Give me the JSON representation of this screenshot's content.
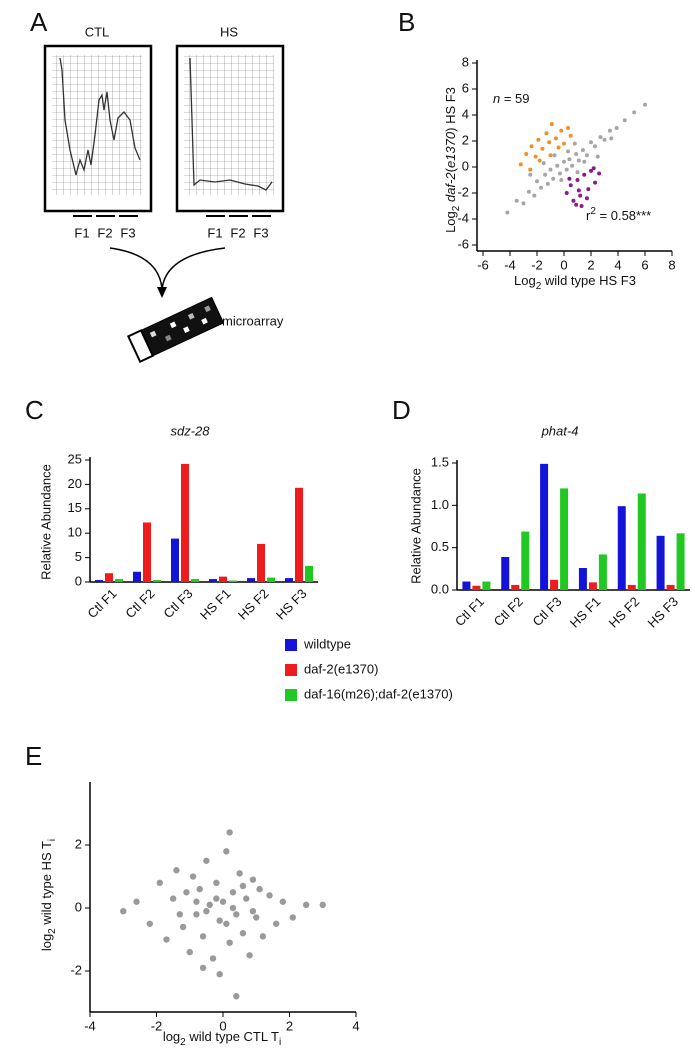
{
  "panel_labels": [
    "A",
    "B",
    "C",
    "D",
    "E"
  ],
  "panel_a": {
    "ctl_label": "CTL",
    "hs_label": "HS",
    "fractions": [
      "F1",
      "F2",
      "F3"
    ],
    "slide_label": "microarray"
  },
  "legend": {
    "corner": "shared-middle"
  },
  "chart_data": [
    {
      "type": "scatter",
      "y_label": [
        "Log",
        "2",
        " ",
        "daf-2",
        "(",
        "e1370",
        ")",
        " HS F3"
      ],
      "x_label": [
        "Log",
        "2",
        " wild type HS F3"
      ],
      "annotations": {
        "n": [
          "n",
          " = 59"
        ],
        "r2": [
          "r",
          "2",
          " = 0.58***"
        ]
      },
      "xlim": [
        -6,
        8
      ],
      "ylim": [
        -6,
        8
      ],
      "xticks": [
        -6,
        -4,
        -2,
        0,
        2,
        4,
        6,
        8
      ],
      "yticks": [
        -6,
        -4,
        -2,
        0,
        2,
        4,
        6,
        8
      ],
      "series": [
        {
          "color": "#a6a6a6",
          "x": [
            -4.2,
            -3.5,
            -3,
            -2.6,
            -2.2,
            -2,
            -1.7,
            -1.4,
            -1.2,
            -1,
            -0.8,
            -0.5,
            -0.3,
            0,
            0.2,
            0.4,
            0.6,
            0.9,
            1.1,
            1.4,
            1.7,
            2,
            2.3,
            2.7,
            3,
            3.4,
            3.9,
            4.5,
            5.2,
            6,
            -1.5,
            -0.2,
            0.8,
            1.5,
            -2.5,
            0.3,
            2.5,
            -0.7,
            1,
            3.5
          ],
          "values": [
            -3.5,
            -2.6,
            -2.8,
            -1.9,
            -2.2,
            -1.1,
            -1.6,
            -0.6,
            -1.3,
            -0.2,
            -0.9,
            0.1,
            -0.5,
            0.4,
            -0.2,
            0.6,
            0.1,
            1,
            0.5,
            1.3,
            0.9,
            1.9,
            1.6,
            2.3,
            2.1,
            2.8,
            3,
            3.6,
            4.2,
            4.8,
            0.3,
            -1,
            1.8,
            0.4,
            -0.6,
            1.2,
            0.8,
            0.9,
            -0.4,
            2.2
          ]
        },
        {
          "color": "#f0902a",
          "x": [
            -3.2,
            -2.8,
            -2.4,
            -2.1,
            -1.9,
            -1.6,
            -1.3,
            -1.1,
            -0.9,
            -0.6,
            -0.4,
            -0.2,
            0,
            0.3,
            -1.8,
            -1,
            -2.5,
            0.5
          ],
          "values": [
            0.2,
            1.0,
            1.6,
            0.8,
            2.1,
            1.4,
            2.6,
            1.9,
            3.3,
            2.2,
            1.5,
            2.8,
            1.8,
            3.0,
            0.5,
            0.9,
            -0.2,
            2.4
          ]
        },
        {
          "color": "#8b1a8b",
          "x": [
            0.2,
            0.5,
            0.7,
            1.0,
            1.2,
            1.5,
            1.8,
            2.0,
            2.3,
            2.6,
            1.3,
            0.9,
            1.7,
            2.2,
            0.4,
            1.1
          ],
          "values": [
            -2.0,
            -1.4,
            -2.6,
            -1.0,
            -2.2,
            -0.6,
            -1.7,
            -0.3,
            -1.2,
            -0.5,
            -3.0,
            -2.9,
            -2.4,
            -0.1,
            -0.9,
            -1.8
          ]
        }
      ]
    },
    {
      "type": "bar",
      "title": "sdz-28",
      "y_label": "Relative Abundance",
      "categories": [
        "Ctl F1",
        "Ctl F2",
        "Ctl F3",
        "HS F1",
        "HS F2",
        "HS F3"
      ],
      "ylim": [
        0,
        25
      ],
      "yticks": [
        0,
        5,
        10,
        15,
        20,
        25
      ],
      "series": [
        {
          "name": "wildtype",
          "color": "#1414d8",
          "values": [
            0.4,
            2.1,
            8.9,
            0.6,
            0.8,
            0.8
          ]
        },
        {
          "name": "daf-2(e1370)",
          "color": "#ee1c1c",
          "values": [
            1.8,
            12.2,
            24.2,
            1.1,
            7.8,
            19.3
          ]
        },
        {
          "name": "daf-16(m26);daf-2(e1370)",
          "color": "#22c822",
          "values": [
            0.6,
            0.4,
            0.6,
            0.3,
            0.9,
            3.3
          ]
        }
      ]
    },
    {
      "type": "bar",
      "title": "phat-4",
      "y_label": "Relative Abundance",
      "categories": [
        "Ctl F1",
        "Ctl F2",
        "Ctl F3",
        "HS F1",
        "HS F2",
        "HS F3"
      ],
      "ylim": [
        0,
        1.5
      ],
      "yticks": [
        {
          "value": 0,
          "label": "0.0"
        },
        0.5,
        {
          "value": 1,
          "label": "1.0"
        },
        1.5
      ],
      "series": [
        {
          "color": "#1414d8",
          "values": [
            0.1,
            0.39,
            1.49,
            0.26,
            0.99,
            0.64
          ]
        },
        {
          "color": "#ee1c1c",
          "values": [
            0.05,
            0.06,
            0.12,
            0.09,
            0.06,
            0.06
          ]
        },
        {
          "color": "#22c822",
          "values": [
            0.1,
            0.69,
            1.2,
            0.42,
            1.14,
            0.67
          ]
        }
      ]
    },
    {
      "type": "scatter",
      "y_label": [
        "log",
        "2",
        " wild type HS T",
        "i"
      ],
      "x_label": [
        "log",
        "2",
        " wild type CTL T",
        "i"
      ],
      "xlim": [
        -4,
        4
      ],
      "ylim": [
        -3.3,
        4
      ],
      "xticks": [
        -4,
        -2,
        0,
        2,
        4
      ],
      "yticks": [
        -2,
        0,
        2
      ],
      "series": [
        {
          "color": "#9a9a9a",
          "x": [
            -2.6,
            -2.2,
            -1.9,
            -1.7,
            -1.5,
            -1.4,
            -1.2,
            -1.1,
            -1,
            -0.9,
            -0.8,
            -0.7,
            -0.6,
            -0.5,
            -0.4,
            -0.3,
            -0.2,
            -0.1,
            0,
            0.1,
            0.2,
            0.3,
            0.4,
            0.5,
            0.6,
            0.7,
            0.8,
            0.9,
            1,
            1.1,
            1.2,
            1.4,
            1.6,
            1.8,
            2.1,
            2.5,
            -0.5,
            -0.2,
            0.1,
            0.3,
            -0.8,
            0.6,
            -1.3,
            0.9,
            -0.1,
            0.2,
            -0.6,
            0.4,
            3.0,
            -3.0
          ],
          "values": [
            0.2,
            -0.5,
            0.8,
            -1.0,
            0.3,
            1.2,
            -0.6,
            0.5,
            -1.4,
            1.0,
            -0.2,
            0.6,
            -0.9,
            1.5,
            0.1,
            -1.6,
            0.8,
            -0.4,
            0.2,
            1.8,
            -1.1,
            0.5,
            -0.2,
            1.1,
            -0.8,
            0.3,
            -1.5,
            0.9,
            -0.3,
            0.6,
            -0.9,
            0.4,
            -0.5,
            0.2,
            -0.3,
            0.1,
            -0.1,
            0.3,
            -0.5,
            0.0,
            0.2,
            0.7,
            -0.2,
            -0.1,
            -2.1,
            2.4,
            -1.9,
            -2.8,
            0.1,
            -0.1
          ]
        }
      ]
    }
  ]
}
